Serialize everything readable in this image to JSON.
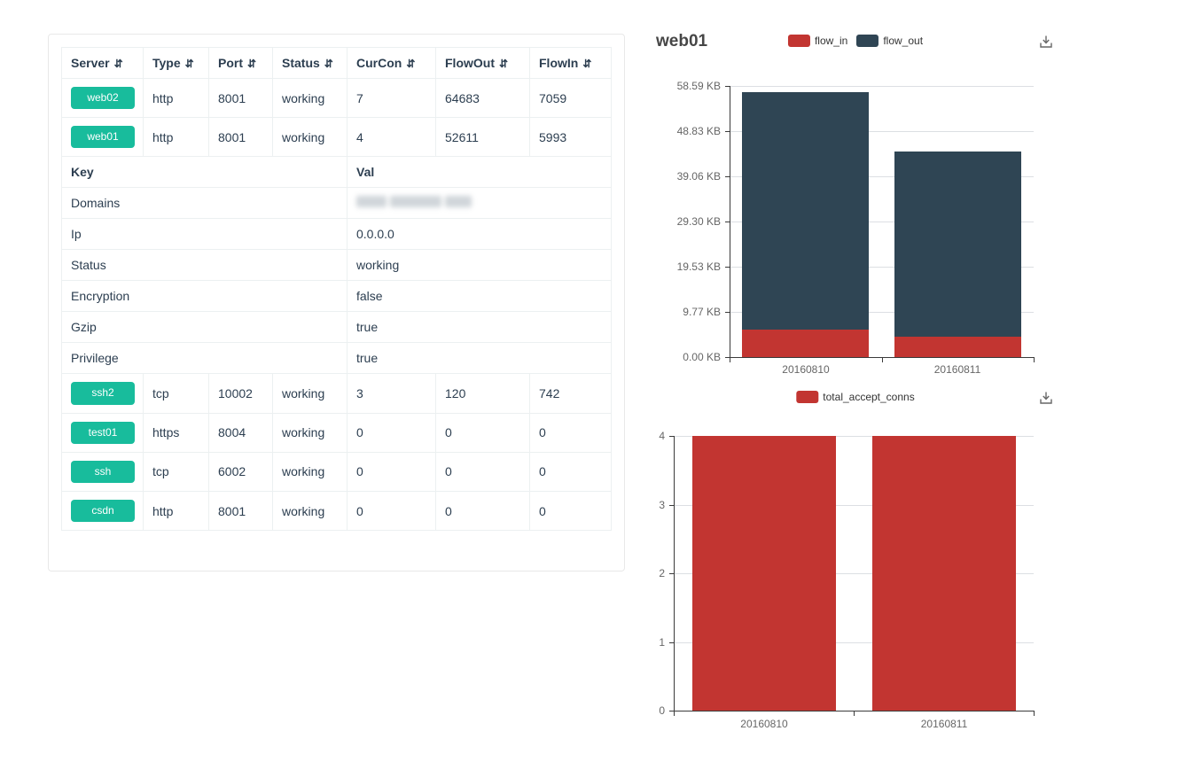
{
  "table": {
    "columns": [
      {
        "label": "Server",
        "sortable": true
      },
      {
        "label": "Type",
        "sortable": true
      },
      {
        "label": "Port",
        "sortable": true
      },
      {
        "label": "Status",
        "sortable": true
      },
      {
        "label": "CurCon",
        "sortable": true
      },
      {
        "label": "FlowOut",
        "sortable": true
      },
      {
        "label": "FlowIn",
        "sortable": true
      }
    ],
    "sort_icon": "⇵",
    "top_rows": [
      {
        "server": "web02",
        "type": "http",
        "port": "8001",
        "status": "working",
        "curcon": "7",
        "flowout": "64683",
        "flowin": "7059"
      },
      {
        "server": "web01",
        "type": "http",
        "port": "8001",
        "status": "working",
        "curcon": "4",
        "flowout": "52611",
        "flowin": "5993"
      }
    ],
    "kv_header": {
      "key": "Key",
      "val": "Val"
    },
    "kv_rows": [
      {
        "key": "Domains",
        "val": "",
        "redacted": true
      },
      {
        "key": "Ip",
        "val": "0.0.0.0",
        "redacted": false
      },
      {
        "key": "Status",
        "val": "working",
        "redacted": false
      },
      {
        "key": "Encryption",
        "val": "false",
        "redacted": false
      },
      {
        "key": "Gzip",
        "val": "true",
        "redacted": false
      },
      {
        "key": "Privilege",
        "val": "true",
        "redacted": false
      }
    ],
    "bottom_rows": [
      {
        "server": "ssh2",
        "type": "tcp",
        "port": "10002",
        "status": "working",
        "curcon": "3",
        "flowout": "120",
        "flowin": "742"
      },
      {
        "server": "test01",
        "type": "https",
        "port": "8004",
        "status": "working",
        "curcon": "0",
        "flowout": "0",
        "flowin": "0"
      },
      {
        "server": "ssh",
        "type": "tcp",
        "port": "6002",
        "status": "working",
        "curcon": "0",
        "flowout": "0",
        "flowin": "0"
      },
      {
        "server": "csdn",
        "type": "http",
        "port": "8001",
        "status": "working",
        "curcon": "0",
        "flowout": "0",
        "flowin": "0"
      }
    ]
  },
  "chart_data": [
    {
      "type": "bar",
      "stacked": true,
      "title": "web01",
      "categories": [
        "20160810",
        "20160811"
      ],
      "series": [
        {
          "name": "flow_in",
          "color": "#c23531",
          "values": [
            5993,
            4600
          ]
        },
        {
          "name": "flow_out",
          "color": "#2f4554",
          "values": [
            52611,
            40900
          ]
        }
      ],
      "unit": "bytes",
      "ylim": [
        0,
        60000
      ],
      "y_ticks": [
        {
          "value": 0,
          "label": "0.00 KB"
        },
        {
          "value": 10000,
          "label": "9.77 KB"
        },
        {
          "value": 20000,
          "label": "19.53 KB"
        },
        {
          "value": 30000,
          "label": "29.30 KB"
        },
        {
          "value": 40000,
          "label": "39.06 KB"
        },
        {
          "value": 50000,
          "label": "48.83 KB"
        },
        {
          "value": 60000,
          "label": "58.59 KB"
        }
      ],
      "grid": true,
      "legend_position": "top-center",
      "has_download_button": true
    },
    {
      "type": "bar",
      "stacked": false,
      "title": "",
      "categories": [
        "20160810",
        "20160811"
      ],
      "series": [
        {
          "name": "total_accept_conns",
          "color": "#c23531",
          "values": [
            4,
            4
          ]
        }
      ],
      "ylim": [
        0,
        4
      ],
      "y_ticks": [
        {
          "value": 0,
          "label": "0"
        },
        {
          "value": 1,
          "label": "1"
        },
        {
          "value": 2,
          "label": "2"
        },
        {
          "value": 3,
          "label": "3"
        },
        {
          "value": 4,
          "label": "4"
        }
      ],
      "grid": true,
      "legend_position": "top-center",
      "has_download_button": true
    }
  ],
  "colors": {
    "badge": "#18bc9c",
    "table_border": "#ecf0f1",
    "text": "#2c3e50",
    "axis": "#3a3a3a",
    "gridline": "#dcdfe3",
    "axis_label": "#666666",
    "legend_text": "#333333",
    "flow_in": "#c23531",
    "flow_out": "#2f4554"
  }
}
